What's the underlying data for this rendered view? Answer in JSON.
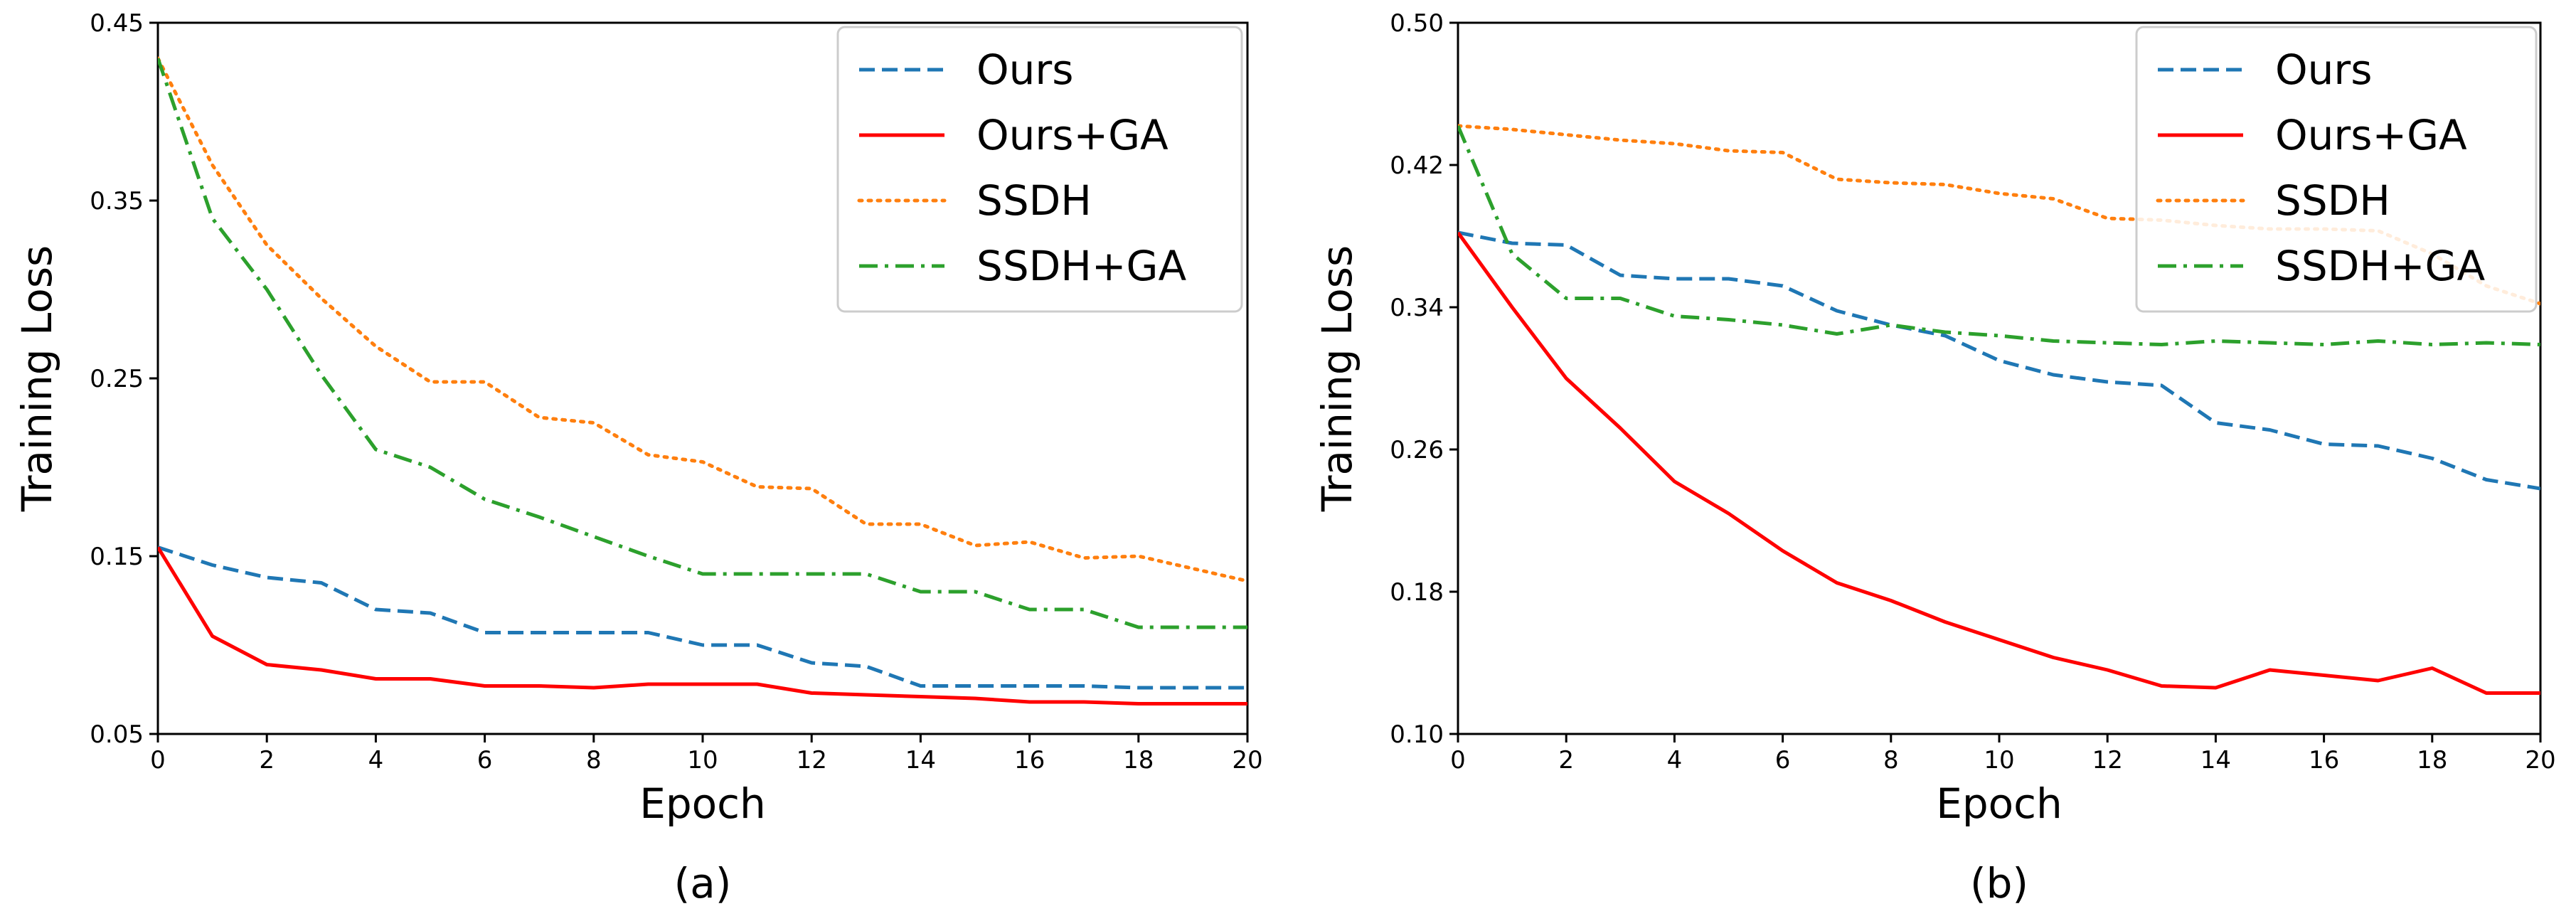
{
  "chart_data": [
    {
      "type": "line",
      "caption": "(a)",
      "xlabel": "Epoch",
      "ylabel": "Training Loss",
      "xlim": [
        0,
        20
      ],
      "ylim": [
        0.05,
        0.45
      ],
      "xticks": [
        0,
        2,
        4,
        6,
        8,
        10,
        12,
        14,
        16,
        18,
        20
      ],
      "yticks": [
        "0.05",
        "0.15",
        "0.25",
        "0.35",
        "0.45"
      ],
      "legend_position": "top-right",
      "x": [
        0,
        1,
        2,
        3,
        4,
        5,
        6,
        7,
        8,
        9,
        10,
        11,
        12,
        13,
        14,
        15,
        16,
        17,
        18,
        20
      ],
      "series": [
        {
          "name": "Ours",
          "color": "#1f77b4",
          "style": "dashed",
          "values": [
            0.155,
            0.145,
            0.138,
            0.135,
            0.12,
            0.118,
            0.107,
            0.107,
            0.107,
            0.107,
            0.1,
            0.1,
            0.09,
            0.088,
            0.077,
            0.077,
            0.077,
            0.077,
            0.076,
            0.076
          ]
        },
        {
          "name": "Ours+GA",
          "color": "#ff0000",
          "style": "solid",
          "values": [
            0.155,
            0.105,
            0.089,
            0.086,
            0.081,
            0.081,
            0.077,
            0.077,
            0.076,
            0.078,
            0.078,
            0.078,
            0.073,
            0.072,
            0.071,
            0.07,
            0.068,
            0.068,
            0.067,
            0.067
          ]
        },
        {
          "name": "SSDH",
          "color": "#ff7f0e",
          "style": "dotted",
          "values": [
            0.43,
            0.37,
            0.325,
            0.295,
            0.268,
            0.248,
            0.248,
            0.228,
            0.225,
            0.207,
            0.203,
            0.189,
            0.188,
            0.168,
            0.168,
            0.156,
            0.158,
            0.149,
            0.15,
            0.136
          ]
        },
        {
          "name": "SSDH+GA",
          "color": "#2ca02c",
          "style": "dashdot",
          "values": [
            0.43,
            0.34,
            0.3,
            0.252,
            0.21,
            0.2,
            0.182,
            0.172,
            0.161,
            0.15,
            0.14,
            0.14,
            0.14,
            0.14,
            0.13,
            0.13,
            0.12,
            0.12,
            0.11,
            0.11
          ]
        }
      ]
    },
    {
      "type": "line",
      "caption": "(b)",
      "xlabel": "Epoch",
      "ylabel": "Training Loss",
      "xlim": [
        0,
        20
      ],
      "ylim": [
        0.1,
        0.5
      ],
      "xticks": [
        0,
        2,
        4,
        6,
        8,
        10,
        12,
        14,
        16,
        18,
        20
      ],
      "yticks": [
        "0.10",
        "0.18",
        "0.26",
        "0.34",
        "0.42",
        "0.50"
      ],
      "legend_position": "top-right",
      "x": [
        0,
        1,
        2,
        3,
        4,
        5,
        6,
        7,
        8,
        9,
        10,
        11,
        12,
        13,
        14,
        15,
        16,
        17,
        18,
        19,
        20
      ],
      "series": [
        {
          "name": "Ours",
          "color": "#1f77b4",
          "style": "dashed",
          "values": [
            0.382,
            0.376,
            0.375,
            0.358,
            0.356,
            0.356,
            0.352,
            0.338,
            0.33,
            0.324,
            0.31,
            0.302,
            0.298,
            0.296,
            0.275,
            0.271,
            0.263,
            0.262,
            0.255,
            0.243,
            0.238
          ]
        },
        {
          "name": "Ours+GA",
          "color": "#ff0000",
          "style": "solid",
          "values": [
            0.382,
            0.34,
            0.3,
            0.272,
            0.242,
            0.224,
            0.203,
            0.185,
            0.175,
            0.163,
            0.153,
            0.143,
            0.136,
            0.127,
            0.126,
            0.136,
            0.133,
            0.13,
            0.137,
            0.123,
            0.123
          ]
        },
        {
          "name": "SSDH",
          "color": "#ff7f0e",
          "style": "dotted",
          "values": [
            0.442,
            0.44,
            0.437,
            0.434,
            0.432,
            0.428,
            0.427,
            0.412,
            0.41,
            0.409,
            0.404,
            0.401,
            0.39,
            0.389,
            0.386,
            0.384,
            0.384,
            0.383,
            0.37,
            0.352,
            0.342
          ]
        },
        {
          "name": "SSDH+GA",
          "color": "#2ca02c",
          "style": "dashdot",
          "values": [
            0.442,
            0.37,
            0.345,
            0.345,
            0.335,
            0.333,
            0.33,
            0.325,
            0.33,
            0.326,
            0.324,
            0.321,
            0.32,
            0.319,
            0.321,
            0.32,
            0.319,
            0.321,
            0.319,
            0.32,
            0.319
          ]
        }
      ]
    }
  ]
}
